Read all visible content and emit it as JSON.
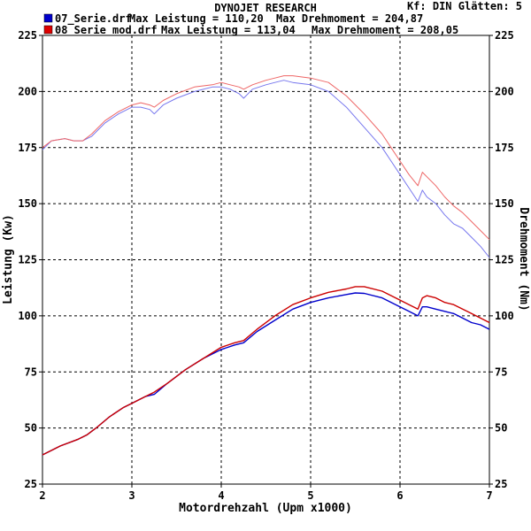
{
  "header": {
    "brand": "DYNOJET RESEARCH",
    "settings": "Kf: DIN  Glätten: 5",
    "legend": [
      {
        "file": "07_Serie.drf",
        "power_label": "Max Leistung = 110,20",
        "torque_label": "Max Drehmoment = 204,87",
        "color": "#0000cc"
      },
      {
        "file": "08_Serie_mod.drf",
        "power_label": "Max Leistung = 113,04",
        "torque_label": "Max Drehmoment = 208,05",
        "color": "#dd0000"
      }
    ]
  },
  "chart_data": {
    "type": "line",
    "title": "DYNOJET RESEARCH",
    "xlabel": "Motordrehzahl (Upm x1000)",
    "ylabel": "Leistung (Kw)",
    "y2label": "Drehmoment (Nm)",
    "xlim": [
      2,
      7
    ],
    "ylim": [
      25,
      225
    ],
    "y2lim": [
      25,
      225
    ],
    "xticks": [
      "2",
      "3",
      "4",
      "5",
      "6",
      "7"
    ],
    "yticks": [
      "25",
      "50",
      "75",
      "100",
      "125",
      "150",
      "175",
      "200",
      "225"
    ],
    "y2ticks": [
      "25",
      "50",
      "75",
      "100",
      "125",
      "150",
      "175",
      "200",
      "225"
    ],
    "grid": true,
    "series": [
      {
        "name": "07_Serie.drf",
        "quantity": "torque",
        "color": "#7777ee",
        "x": [
          2.0,
          2.1,
          2.25,
          2.35,
          2.45,
          2.55,
          2.7,
          2.85,
          3.0,
          3.1,
          3.2,
          3.25,
          3.35,
          3.5,
          3.7,
          3.9,
          4.0,
          4.1,
          4.2,
          4.25,
          4.35,
          4.5,
          4.6,
          4.7,
          4.8,
          5.0,
          5.2,
          5.4,
          5.6,
          5.8,
          5.9,
          6.0,
          6.1,
          6.2,
          6.25,
          6.3,
          6.4,
          6.5,
          6.6,
          6.7,
          6.8,
          6.9,
          7.0
        ],
        "values": [
          174,
          178,
          179,
          178,
          178,
          180,
          186,
          190,
          193,
          193,
          192,
          190,
          194,
          197,
          200,
          202,
          202,
          201,
          199,
          197,
          201,
          203,
          204,
          205,
          204,
          203,
          200,
          193,
          184,
          175,
          169,
          163,
          157,
          151,
          156,
          153,
          150,
          145,
          141,
          139,
          135,
          131,
          126
        ]
      },
      {
        "name": "08_Serie_mod.drf",
        "quantity": "torque",
        "color": "#ee6666",
        "x": [
          2.0,
          2.1,
          2.25,
          2.35,
          2.45,
          2.55,
          2.7,
          2.85,
          3.0,
          3.1,
          3.2,
          3.25,
          3.35,
          3.5,
          3.7,
          3.9,
          4.0,
          4.1,
          4.2,
          4.25,
          4.35,
          4.5,
          4.6,
          4.7,
          4.8,
          5.0,
          5.2,
          5.4,
          5.6,
          5.8,
          5.9,
          6.0,
          6.1,
          6.2,
          6.25,
          6.3,
          6.4,
          6.5,
          6.6,
          6.7,
          6.8,
          6.9,
          7.0
        ],
        "values": [
          175,
          178,
          179,
          178,
          178,
          181,
          187,
          191,
          194,
          195,
          194,
          193,
          196,
          199,
          202,
          203,
          204,
          203,
          202,
          201,
          203,
          205,
          206,
          207,
          207,
          206,
          204,
          198,
          190,
          181,
          175,
          169,
          163,
          158,
          164,
          162,
          158,
          153,
          149,
          146,
          142,
          138,
          134
        ]
      },
      {
        "name": "07_Serie.drf",
        "quantity": "power",
        "color": "#0000cc",
        "x": [
          2.0,
          2.2,
          2.4,
          2.5,
          2.6,
          2.75,
          2.9,
          3.0,
          3.15,
          3.25,
          3.4,
          3.6,
          3.8,
          4.0,
          4.15,
          4.25,
          4.4,
          4.6,
          4.8,
          5.0,
          5.2,
          5.4,
          5.5,
          5.6,
          5.8,
          6.0,
          6.1,
          6.2,
          6.25,
          6.3,
          6.4,
          6.5,
          6.6,
          6.7,
          6.8,
          6.9,
          7.0
        ],
        "values": [
          38,
          42,
          45,
          47,
          50,
          55,
          59,
          61,
          64,
          65,
          70,
          76,
          81,
          85,
          87,
          88,
          93,
          98,
          103,
          106,
          108,
          109.5,
          110.2,
          110,
          108,
          104,
          102,
          100,
          104,
          104,
          103,
          102,
          101,
          99,
          97,
          96,
          94
        ]
      },
      {
        "name": "08_Serie_mod.drf",
        "quantity": "power",
        "color": "#cc0000",
        "x": [
          2.0,
          2.2,
          2.4,
          2.5,
          2.6,
          2.75,
          2.9,
          3.0,
          3.15,
          3.25,
          3.4,
          3.6,
          3.8,
          4.0,
          4.15,
          4.25,
          4.4,
          4.6,
          4.8,
          5.0,
          5.2,
          5.4,
          5.5,
          5.6,
          5.8,
          6.0,
          6.1,
          6.2,
          6.25,
          6.3,
          6.4,
          6.5,
          6.6,
          6.7,
          6.8,
          6.9,
          7.0
        ],
        "values": [
          38,
          42,
          45,
          47,
          50,
          55,
          59,
          61,
          64,
          66,
          70,
          76,
          81,
          86,
          88,
          89,
          94,
          100,
          105,
          108,
          110.5,
          112,
          113,
          113,
          111,
          107,
          105,
          103,
          108,
          109,
          108,
          106,
          105,
          103,
          101,
          99,
          97
        ]
      }
    ]
  }
}
